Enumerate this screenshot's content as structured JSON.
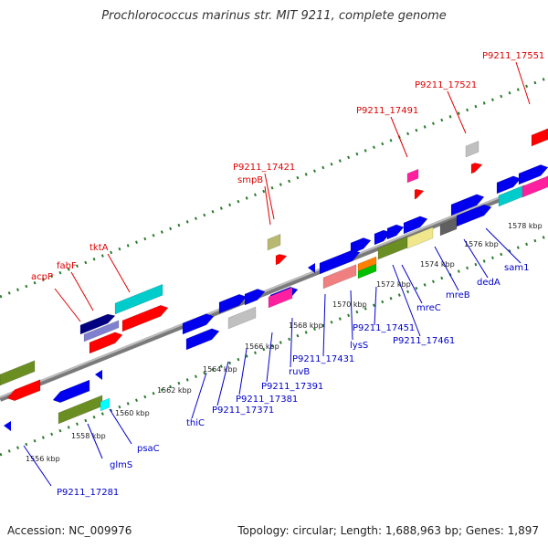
{
  "title": "Prochlorococcus marinus str. MIT 9211, complete genome",
  "footer": {
    "accession": "Accession: NC_009976",
    "topology": "Topology: circular; Length: 1,688,963 bp; Genes: 1,897"
  },
  "colors": {
    "backbone": "#808080",
    "dots": "#2a7a2a",
    "label_top": "#e00000",
    "label_bottom": "#0000cc"
  },
  "ticks": [
    "1556 kbp",
    "1558 kbp",
    "1560 kbp",
    "1562 kbp",
    "1564 kbp",
    "1566 kbp",
    "1568 kbp",
    "1570 kbp",
    "1572 kbp",
    "1574 kbp",
    "1576 kbp",
    "1578 kbp"
  ],
  "labels_top": [
    "acpP",
    "fabF",
    "tktA",
    "P9211_17421",
    "smpB",
    "P9211_17491",
    "P9211_17521",
    "P9211_17551"
  ],
  "labels_bottom": [
    "P9211_17281",
    "glmS",
    "psaC",
    "thiC",
    "P9211_17371",
    "P9211_17381",
    "P9211_17391",
    "ruvB",
    "P9211_17431",
    "lysS",
    "P9211_17451",
    "P9211_17461",
    "mreC",
    "mreB",
    "dedA",
    "sam1"
  ]
}
